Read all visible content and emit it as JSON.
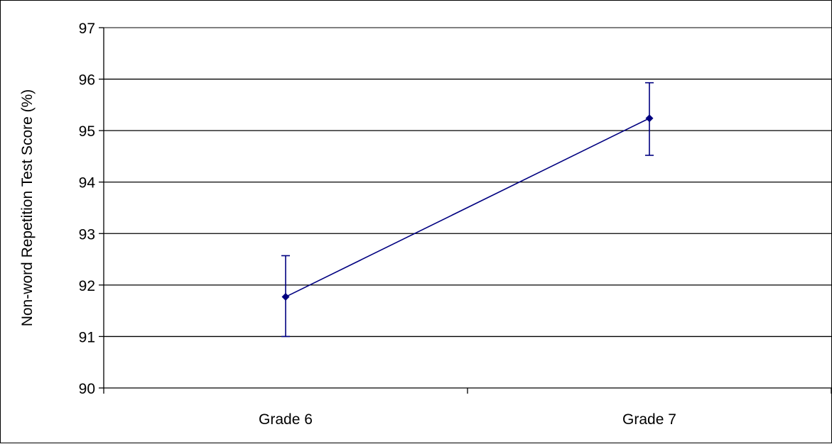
{
  "chart_data": {
    "type": "line",
    "title": "",
    "xlabel": "",
    "ylabel": "Non-word Repetition Test Score (%)",
    "categories": [
      "Grade 6",
      "Grade 7"
    ],
    "series": [
      {
        "values": [
          91.77,
          95.24
        ],
        "error_low": [
          91.0,
          94.52
        ],
        "error_high": [
          92.57,
          95.93
        ],
        "color": "#000080"
      }
    ],
    "ylim": [
      90,
      97
    ],
    "yticks": [
      90,
      91,
      92,
      93,
      94,
      95,
      96,
      97
    ],
    "grid": true,
    "legend": "none",
    "colors": {
      "gridline": "#000000",
      "topline": "#808080",
      "series": "#000080"
    }
  }
}
